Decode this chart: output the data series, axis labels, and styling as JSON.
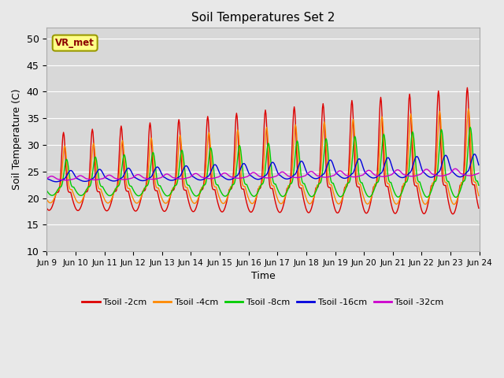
{
  "title": "Soil Temperatures Set 2",
  "xlabel": "Time",
  "ylabel": "Soil Temperature (C)",
  "ylim": [
    10,
    52
  ],
  "yticks": [
    10,
    15,
    20,
    25,
    30,
    35,
    40,
    45,
    50
  ],
  "x_labels": [
    "Jun 9",
    "Jun 10",
    "Jun 11",
    "Jun 12",
    "Jun 13",
    "Jun 14",
    "Jun 15",
    "Jun 16",
    "Jun 17",
    "Jun 18",
    "Jun 19",
    "Jun 20",
    "Jun 21",
    "Jun 22",
    "Jun 23",
    "Jun 24"
  ],
  "annotation": "VR_met",
  "bg_color": "#e8e8e8",
  "plot_bg_color": "#d8d8d8",
  "line_colors": {
    "2cm": "#dd0000",
    "4cm": "#ff8800",
    "8cm": "#00cc00",
    "16cm": "#0000dd",
    "32cm": "#cc00cc"
  },
  "legend_labels": [
    "Tsoil -2cm",
    "Tsoil -4cm",
    "Tsoil -8cm",
    "Tsoil -16cm",
    "Tsoil -32cm"
  ]
}
